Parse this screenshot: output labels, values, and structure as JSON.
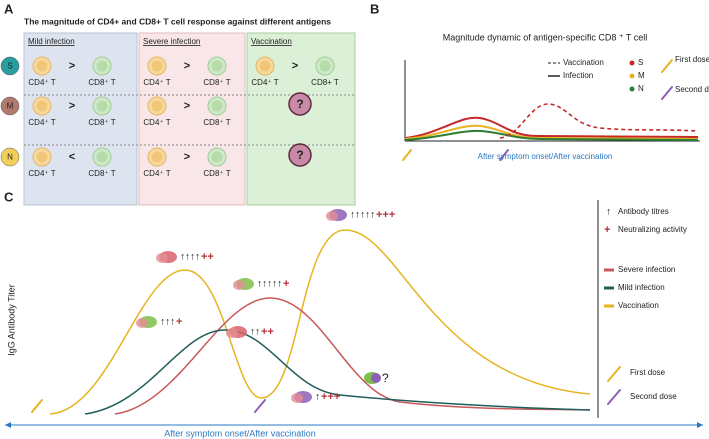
{
  "panel_labels": [
    "A",
    "B",
    "C"
  ],
  "panel_a": {
    "title": "The magnitude of CD4+ and CD8+ T cell response against different antigens",
    "columns": [
      "Mild infection",
      "Severe infection",
      "Vaccination"
    ],
    "rows": [
      {
        "antigen": "S",
        "cells": [
          {
            "cd4": "CD4⁺ T",
            "op": ">",
            "cd8": "CD8⁺ T"
          },
          {
            "cd4": "CD4⁺ T",
            "op": ">",
            "cd8": "CD8⁺ T"
          },
          {
            "cd4": "CD4⁺ T",
            "op": ">",
            "cd8": "CD8+ T"
          }
        ]
      },
      {
        "antigen": "M",
        "cells": [
          {
            "cd4": "CD4⁺ T",
            "op": ">",
            "cd8": "CD8⁺ T"
          },
          {
            "cd4": "CD4⁺ T",
            "op": ">",
            "cd8": "CD8⁺ T"
          },
          {
            "unknown": "?"
          }
        ]
      },
      {
        "antigen": "N",
        "cells": [
          {
            "cd4": "CD4⁺ T",
            "op": "<",
            "cd8": "CD8⁺ T"
          },
          {
            "cd4": "CD4⁺ T",
            "op": ">",
            "cd8": "CD8⁺ T"
          },
          {
            "unknown": "?"
          }
        ]
      }
    ]
  },
  "panel_b": {
    "title": "Magnitude dynamic of antigen-specific CD8 ⁺ T cell",
    "line_legend": [
      "Vaccination",
      "Infection"
    ],
    "antigens": [
      "S",
      "M",
      "N"
    ],
    "doses": [
      "First dose",
      "Second dose"
    ],
    "xlabel": "After symptom onset/After vaccination"
  },
  "panel_c": {
    "ylabel": "IgG Antibody Titer",
    "xlabel": "After symptom onset/After vaccination",
    "annotations": [
      {
        "arrows": "↑↑↑↑",
        "plus": "++"
      },
      {
        "arrows": "↑↑↑↑↑",
        "plus": "+"
      },
      {
        "arrows": "↑↑↑↑↑",
        "plus": "+++"
      },
      {
        "arrows": "↑↑↑",
        "plus": "+"
      },
      {
        "arrows": "↑↑",
        "plus": "++"
      },
      {
        "arrows": "↑",
        "plus": "+++"
      }
    ],
    "unknown": "?",
    "legend_markers": [
      "Antibody titres",
      "Neutralizing activity"
    ],
    "legend_lines": [
      "Severe infection",
      "Mild infection",
      "Vaccination"
    ],
    "doses": [
      "First dose",
      "Second dose"
    ]
  }
}
